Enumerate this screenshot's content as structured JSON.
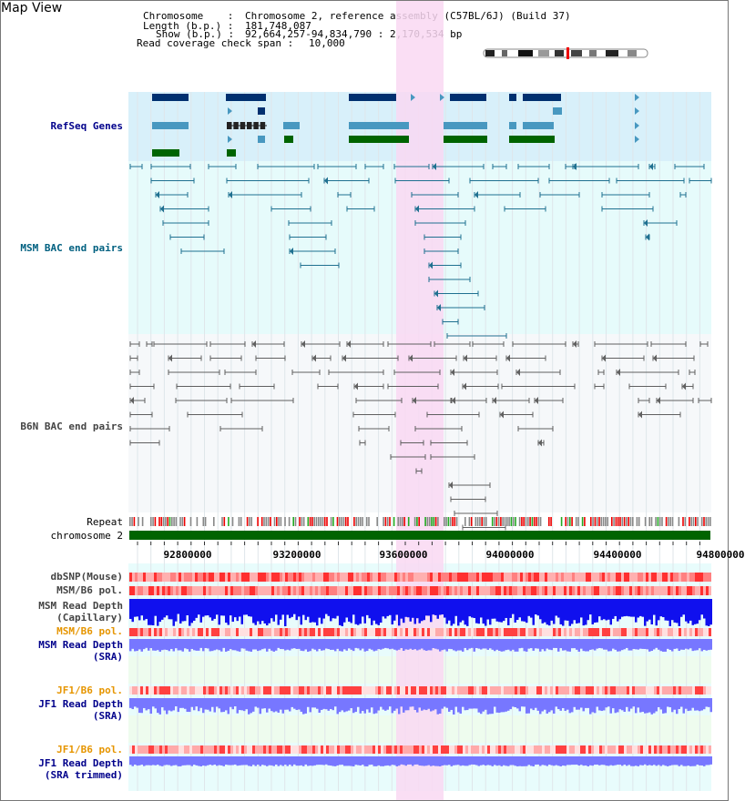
{
  "title": "Map View",
  "header": {
    "chromosome_label": "Chromosome    :",
    "chromosome_value": "Chromosome 2, reference assembly (C57BL/6J) (Build 37)",
    "length_label": "Length (b.p.) :",
    "length_value": "181,748,087",
    "show_label": "Show (b.p.) :",
    "show_value": "92,664,257-94,834,790 : 2,170,534 bp",
    "coverage_label": "Read coverage check span :",
    "coverage_value": "10,000"
  },
  "tracks": {
    "refseq": "RefSeq Genes",
    "msm_bac": "MSM BAC end pairs",
    "b6n_bac": "B6N BAC end pairs",
    "repeat": "Repeat",
    "chromosome": "chromosome 2",
    "dbsnp": "dbSNP(Mouse)",
    "msm_b6_pol_1": "MSM/B6 pol.",
    "msm_depth_cap_1": "MSM Read Depth",
    "msm_depth_cap_2": "(Capillary)",
    "msm_b6_pol_2": "MSM/B6 pol.",
    "msm_depth_sra_1": "MSM Read Depth",
    "msm_depth_sra_2": "(SRA)",
    "jf1_pol_1": "JF1/B6 pol.",
    "jf1_depth_sra_1": "JF1 Read Depth",
    "jf1_depth_sra_2": "(SRA)",
    "jf1_pol_2": "JF1/B6 pol.",
    "jf1_depth_trim_1": "JF1 Read Depth",
    "jf1_depth_trim_2": "(SRA trimmed)"
  },
  "axis": {
    "ticks": [
      "92800000",
      "93200000",
      "93600000",
      "94000000",
      "94400000",
      "94800000"
    ]
  },
  "colors": {
    "highlight": "#f9d8f2",
    "refseq_bg": "#d8f0fa",
    "pair_bg": "#e6fbfb",
    "navy_gene": "#003070",
    "light_gene": "#4898c0",
    "green_gene": "#006400",
    "msm_line": "#1f7090",
    "b6n_line": "#606060",
    "chrom_bar": "#006400",
    "depth_blue": "#1010ee",
    "depth_light": "#7777ff",
    "pol_red": "#ff5050"
  }
}
